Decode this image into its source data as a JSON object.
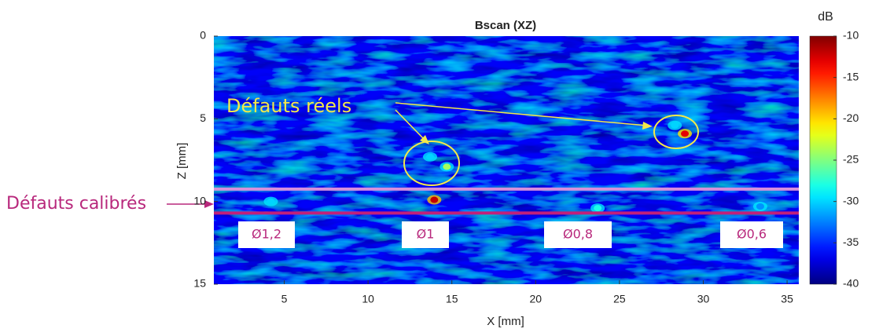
{
  "chart_data": {
    "type": "heatmap",
    "title": "Bscan (XZ)",
    "x_label": "X [mm]",
    "y_label": "Z [mm]",
    "xlim": [
      0.8,
      35.7
    ],
    "xticks": [
      5,
      10,
      15,
      20,
      25,
      30,
      35
    ],
    "ylim": [
      15,
      0
    ],
    "yticks": [
      0,
      5,
      10,
      15
    ],
    "colorbar_label": "dB",
    "clim": [
      -40,
      -10
    ],
    "cticks": [
      -10,
      -15,
      -20,
      -25,
      -30,
      -35,
      -40
    ],
    "hotspots": [
      {
        "x": 13.95,
        "z": 9.9,
        "db": -12
      },
      {
        "x": 14.7,
        "z": 7.9,
        "db": -24
      },
      {
        "x": 13.7,
        "z": 7.3,
        "db": -30
      },
      {
        "x": 28.9,
        "z": 5.9,
        "db": -13
      },
      {
        "x": 28.3,
        "z": 5.4,
        "db": -30
      },
      {
        "x": 23.7,
        "z": 10.4,
        "db": -28
      },
      {
        "x": 4.2,
        "z": 10.0,
        "db": -30
      },
      {
        "x": 33.4,
        "z": 10.3,
        "db": -32
      }
    ],
    "lines": [
      {
        "z": 9.25,
        "color": "#d58fdc"
      },
      {
        "z": 10.7,
        "color": "#c0207a"
      }
    ],
    "annotations": {
      "real": "Défauts réels",
      "calibrated": "Défauts calibrés"
    },
    "diameters": [
      "Ø1,2",
      "Ø1",
      "Ø0,8",
      "Ø0,6"
    ]
  }
}
